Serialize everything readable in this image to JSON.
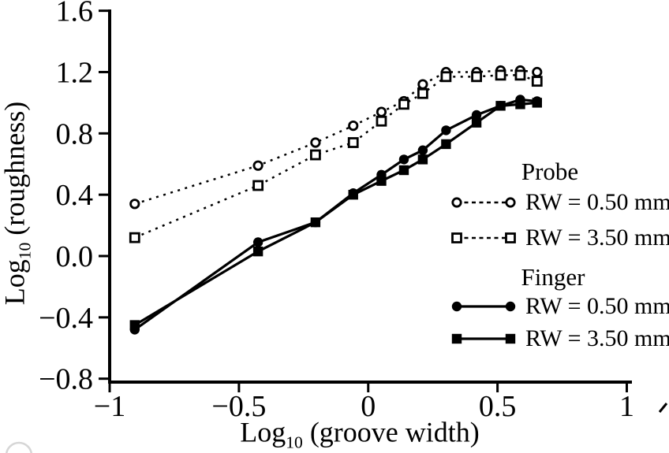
{
  "figure": {
    "background": "#ffffff",
    "ink_color": "#000000",
    "artifact_color": "#d6d6d6"
  },
  "chart_data": {
    "type": "line",
    "title": "",
    "xlabel_main": "Log",
    "xlabel_sub": "10",
    "xlabel_rest": " (groove width)",
    "ylabel_main": "Log",
    "ylabel_sub": "10",
    "ylabel_rest": " (roughness)",
    "xlim": [
      -1,
      1
    ],
    "ylim": [
      -0.8,
      1.6
    ],
    "grid": false,
    "legend_position": "right-middle",
    "x_ticks": [
      {
        "value": -1,
        "label": "−1"
      },
      {
        "value": -0.5,
        "label": "−0.5"
      },
      {
        "value": 0,
        "label": "0"
      },
      {
        "value": 0.5,
        "label": "0.5"
      },
      {
        "value": 1,
        "label": "1"
      }
    ],
    "y_ticks": [
      {
        "value": 1.6,
        "label": "1.6"
      },
      {
        "value": 1.2,
        "label": "1.2"
      },
      {
        "value": 0.8,
        "label": "0.8"
      },
      {
        "value": 0.4,
        "label": "0.4"
      },
      {
        "value": 0.0,
        "label": "0.0"
      },
      {
        "value": -0.4,
        "label": "−0.4"
      },
      {
        "value": -0.8,
        "label": "−0.8"
      }
    ],
    "x": [
      -0.903,
      -0.426,
      -0.204,
      -0.058,
      0.051,
      0.138,
      0.211,
      0.301,
      0.419,
      0.512,
      0.588,
      0.653
    ],
    "series": [
      {
        "name": "Probe RW = 0.50 mm",
        "group": "Probe",
        "label": "RW = 0.50 mm",
        "marker": "open-circle",
        "line": "dashed",
        "values": [
          0.34,
          0.59,
          0.74,
          0.85,
          0.94,
          1.01,
          1.12,
          1.2,
          1.2,
          1.21,
          1.21,
          1.2
        ]
      },
      {
        "name": "Probe RW = 3.50 mm",
        "group": "Probe",
        "label": "RW = 3.50 mm",
        "marker": "open-square",
        "line": "dashed",
        "values": [
          0.12,
          0.46,
          0.66,
          0.74,
          0.88,
          0.99,
          1.06,
          1.17,
          1.17,
          1.18,
          1.18,
          1.14
        ]
      },
      {
        "name": "Finger RW = 0.50 mm",
        "group": "Finger",
        "label": "RW = 0.50 mm",
        "marker": "filled-circle",
        "line": "solid",
        "values": [
          -0.48,
          0.09,
          0.22,
          0.41,
          0.53,
          0.63,
          0.69,
          0.82,
          0.92,
          0.98,
          1.02,
          1.01
        ]
      },
      {
        "name": "Finger RW = 3.50 mm",
        "group": "Finger",
        "label": "RW = 3.50 mm",
        "marker": "filled-square",
        "line": "solid",
        "values": [
          -0.45,
          0.03,
          0.22,
          0.4,
          0.49,
          0.56,
          0.63,
          0.73,
          0.87,
          0.98,
          0.99,
          1.0
        ]
      }
    ],
    "legend": {
      "groups": [
        {
          "heading": "Probe",
          "items": [
            {
              "label": "RW = 0.50 mm",
              "marker": "open-circle",
              "line": "dashed"
            },
            {
              "label": "RW = 3.50 mm",
              "marker": "open-square",
              "line": "dashed"
            }
          ]
        },
        {
          "heading": "Finger",
          "items": [
            {
              "label": "RW = 0.50 mm",
              "marker": "filled-circle",
              "line": "solid"
            },
            {
              "label": "RW = 3.50 mm",
              "marker": "filled-square",
              "line": "solid"
            }
          ]
        }
      ]
    }
  }
}
